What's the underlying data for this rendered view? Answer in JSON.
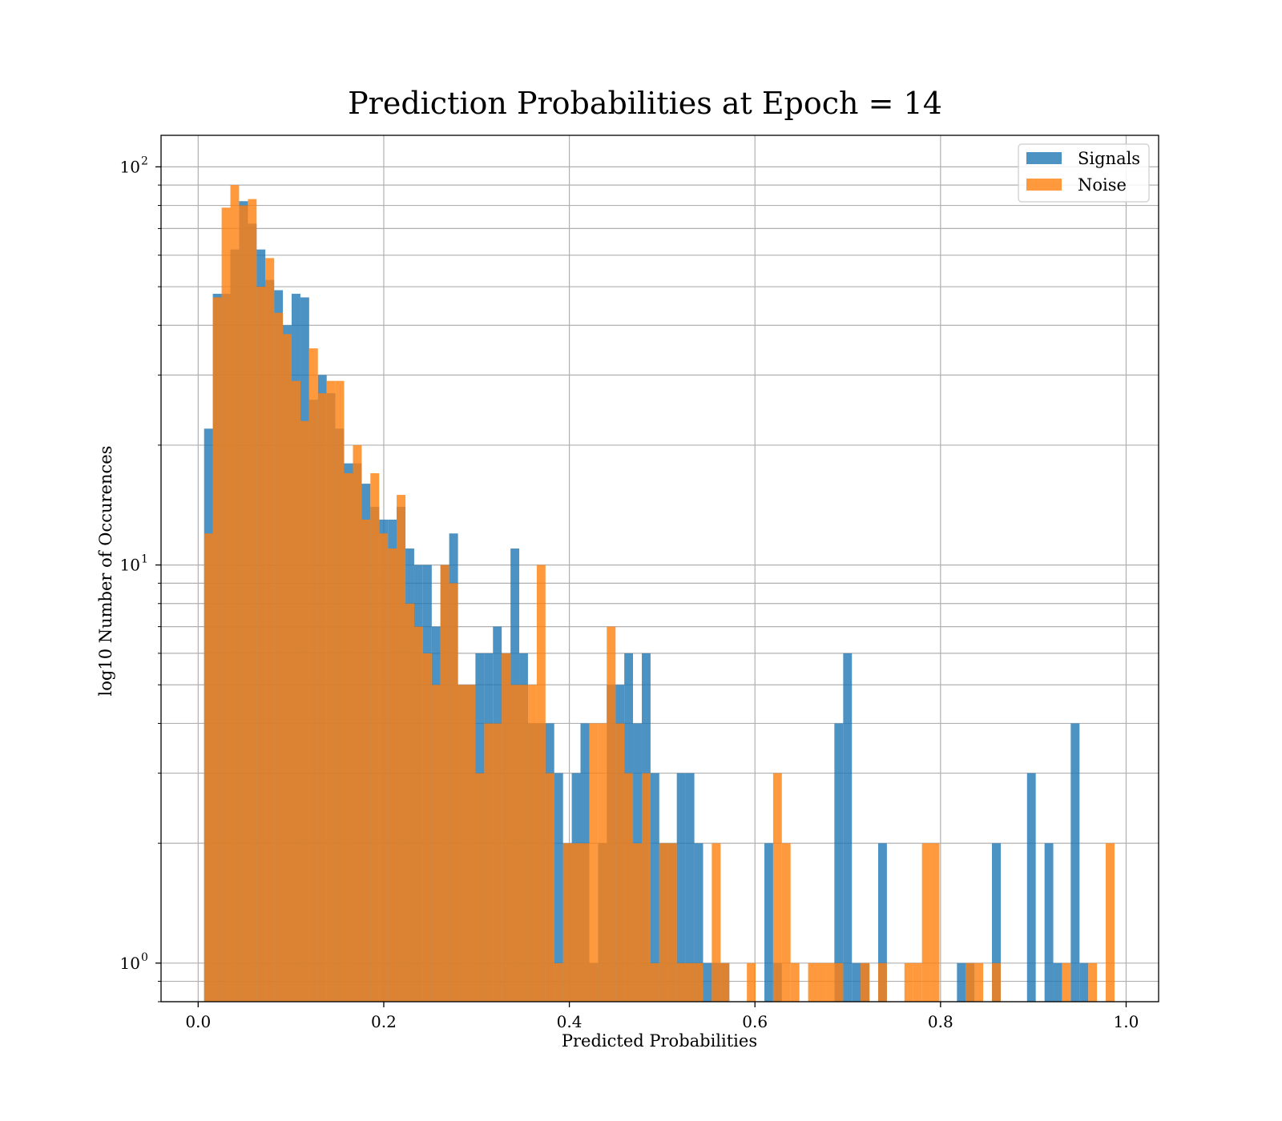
{
  "chart_data": {
    "type": "histogram",
    "title": "Prediction Probabilities at Epoch = 14",
    "xlabel": "Predicted Probabilities",
    "ylabel": "log10 Number of Occurences",
    "y_scale": "log",
    "xlim": [
      -0.04,
      1.035
    ],
    "ylim": [
      0.8,
      120
    ],
    "x_ticks": [
      "0.0",
      "0.2",
      "0.4",
      "0.6",
      "0.8",
      "1.0"
    ],
    "y_ticks": [
      {
        "base": "10",
        "exp": "0",
        "value": 1
      },
      {
        "base": "10",
        "exp": "1",
        "value": 10
      },
      {
        "base": "10",
        "exp": "2",
        "value": 100
      }
    ],
    "grid": true,
    "legend_position": "upper right",
    "series": [
      {
        "name": "Signals",
        "color": "#1f77b4",
        "bins": [
          [
            0.0064,
            0.0158,
            22
          ],
          [
            0.0158,
            0.0253,
            48
          ],
          [
            0.0253,
            0.0347,
            48
          ],
          [
            0.0347,
            0.0441,
            62
          ],
          [
            0.0441,
            0.0536,
            82
          ],
          [
            0.0536,
            0.063,
            72
          ],
          [
            0.063,
            0.0724,
            62
          ],
          [
            0.0724,
            0.0819,
            52
          ],
          [
            0.0819,
            0.0913,
            49
          ],
          [
            0.0913,
            0.1007,
            40
          ],
          [
            0.1007,
            0.1102,
            48
          ],
          [
            0.1102,
            0.1196,
            47
          ],
          [
            0.1196,
            0.129,
            26
          ],
          [
            0.129,
            0.1385,
            30
          ],
          [
            0.1385,
            0.1479,
            27
          ],
          [
            0.1479,
            0.1573,
            22
          ],
          [
            0.1573,
            0.1668,
            18
          ],
          [
            0.1668,
            0.1762,
            18
          ],
          [
            0.1762,
            0.1856,
            16
          ],
          [
            0.1856,
            0.1951,
            14
          ],
          [
            0.1951,
            0.2045,
            13
          ],
          [
            0.2045,
            0.2139,
            13
          ],
          [
            0.2139,
            0.2234,
            14
          ],
          [
            0.2234,
            0.2328,
            11
          ],
          [
            0.2328,
            0.2422,
            10
          ],
          [
            0.2422,
            0.2517,
            10
          ],
          [
            0.2517,
            0.2611,
            7
          ],
          [
            0.2611,
            0.2705,
            10
          ],
          [
            0.2705,
            0.28,
            12
          ],
          [
            0.28,
            0.2894,
            5
          ],
          [
            0.2894,
            0.2988,
            5
          ],
          [
            0.2988,
            0.3083,
            6
          ],
          [
            0.3083,
            0.3177,
            6
          ],
          [
            0.3177,
            0.3271,
            7
          ],
          [
            0.3271,
            0.3366,
            6
          ],
          [
            0.3366,
            0.346,
            11
          ],
          [
            0.346,
            0.3554,
            6
          ],
          [
            0.3554,
            0.3649,
            4
          ],
          [
            0.3649,
            0.3743,
            4
          ],
          [
            0.3743,
            0.3837,
            4
          ],
          [
            0.3837,
            0.3932,
            3
          ],
          [
            0.3932,
            0.4026,
            2
          ],
          [
            0.4026,
            0.412,
            3
          ],
          [
            0.412,
            0.4215,
            4
          ],
          [
            0.4215,
            0.4309,
            1
          ],
          [
            0.4309,
            0.4403,
            2
          ],
          [
            0.4403,
            0.4498,
            5
          ],
          [
            0.4498,
            0.4592,
            5
          ],
          [
            0.4592,
            0.4686,
            6
          ],
          [
            0.4686,
            0.4781,
            4
          ],
          [
            0.4781,
            0.4875,
            6
          ],
          [
            0.4875,
            0.4969,
            3
          ],
          [
            0.4969,
            0.5064,
            2
          ],
          [
            0.5064,
            0.5158,
            2
          ],
          [
            0.5158,
            0.5252,
            3
          ],
          [
            0.5252,
            0.5347,
            3
          ],
          [
            0.5347,
            0.5441,
            2
          ],
          [
            0.5441,
            0.5535,
            1
          ],
          [
            0.5535,
            0.563,
            1
          ],
          [
            0.563,
            0.5724,
            1
          ],
          [
            0.6102,
            0.6196,
            2
          ],
          [
            0.6196,
            0.629,
            1
          ],
          [
            0.6856,
            0.6951,
            4
          ],
          [
            0.6951,
            0.7045,
            6
          ],
          [
            0.7045,
            0.7139,
            1
          ],
          [
            0.7139,
            0.7234,
            1
          ],
          [
            0.7328,
            0.7422,
            2
          ],
          [
            0.8177,
            0.8271,
            1
          ],
          [
            0.8271,
            0.8366,
            1
          ],
          [
            0.8554,
            0.8649,
            2
          ],
          [
            0.8932,
            0.9026,
            3
          ],
          [
            0.9121,
            0.9215,
            2
          ],
          [
            0.9215,
            0.9309,
            1
          ],
          [
            0.9403,
            0.9498,
            4
          ],
          [
            0.9498,
            0.9592,
            1
          ]
        ]
      },
      {
        "name": "Noise",
        "color": "#ff7f0e",
        "bins": [
          [
            0.0064,
            0.0158,
            12
          ],
          [
            0.0158,
            0.0253,
            47
          ],
          [
            0.0253,
            0.0347,
            79
          ],
          [
            0.0347,
            0.0441,
            90
          ],
          [
            0.0441,
            0.0536,
            80
          ],
          [
            0.0536,
            0.063,
            83
          ],
          [
            0.063,
            0.0724,
            50
          ],
          [
            0.0724,
            0.0819,
            59
          ],
          [
            0.0819,
            0.0913,
            43
          ],
          [
            0.0913,
            0.1007,
            38
          ],
          [
            0.1007,
            0.1102,
            29
          ],
          [
            0.1102,
            0.1196,
            23
          ],
          [
            0.1196,
            0.129,
            35
          ],
          [
            0.129,
            0.1385,
            27
          ],
          [
            0.1385,
            0.1479,
            29
          ],
          [
            0.1479,
            0.1573,
            29
          ],
          [
            0.1573,
            0.1668,
            17
          ],
          [
            0.1668,
            0.1762,
            20
          ],
          [
            0.1762,
            0.1856,
            13
          ],
          [
            0.1856,
            0.1951,
            17
          ],
          [
            0.1951,
            0.2045,
            12
          ],
          [
            0.2045,
            0.2139,
            11
          ],
          [
            0.2139,
            0.2234,
            15
          ],
          [
            0.2234,
            0.2328,
            8
          ],
          [
            0.2328,
            0.2422,
            7
          ],
          [
            0.2422,
            0.2517,
            6
          ],
          [
            0.2517,
            0.2611,
            5
          ],
          [
            0.2611,
            0.2705,
            10
          ],
          [
            0.2705,
            0.28,
            9
          ],
          [
            0.28,
            0.2894,
            5
          ],
          [
            0.2894,
            0.2988,
            5
          ],
          [
            0.2988,
            0.3083,
            3
          ],
          [
            0.3083,
            0.3177,
            4
          ],
          [
            0.3177,
            0.3271,
            4
          ],
          [
            0.3271,
            0.3366,
            6
          ],
          [
            0.3366,
            0.346,
            5
          ],
          [
            0.346,
            0.3554,
            5
          ],
          [
            0.3554,
            0.3649,
            5
          ],
          [
            0.3649,
            0.3743,
            10
          ],
          [
            0.3743,
            0.3837,
            3
          ],
          [
            0.3837,
            0.3932,
            1
          ],
          [
            0.3932,
            0.4026,
            2
          ],
          [
            0.4026,
            0.412,
            2
          ],
          [
            0.412,
            0.4215,
            2
          ],
          [
            0.4215,
            0.4309,
            4
          ],
          [
            0.4309,
            0.4403,
            4
          ],
          [
            0.4403,
            0.4498,
            7
          ],
          [
            0.4498,
            0.4592,
            4
          ],
          [
            0.4592,
            0.4686,
            3
          ],
          [
            0.4686,
            0.4781,
            2
          ],
          [
            0.4781,
            0.4875,
            3
          ],
          [
            0.4875,
            0.4969,
            1
          ],
          [
            0.4969,
            0.5064,
            2
          ],
          [
            0.5064,
            0.5158,
            2
          ],
          [
            0.5158,
            0.5252,
            1
          ],
          [
            0.5252,
            0.5347,
            1
          ],
          [
            0.5347,
            0.5441,
            1
          ],
          [
            0.5535,
            0.563,
            2
          ],
          [
            0.563,
            0.5724,
            1
          ],
          [
            0.5913,
            0.6007,
            1
          ],
          [
            0.6196,
            0.629,
            3
          ],
          [
            0.629,
            0.6384,
            2
          ],
          [
            0.6384,
            0.6479,
            1
          ],
          [
            0.6573,
            0.6667,
            1
          ],
          [
            0.6667,
            0.6762,
            1
          ],
          [
            0.6762,
            0.6856,
            1
          ],
          [
            0.6856,
            0.6951,
            1
          ],
          [
            0.7139,
            0.7234,
            1
          ],
          [
            0.7328,
            0.7422,
            1
          ],
          [
            0.7611,
            0.7705,
            1
          ],
          [
            0.7705,
            0.78,
            1
          ],
          [
            0.78,
            0.7894,
            2
          ],
          [
            0.7894,
            0.7988,
            2
          ],
          [
            0.8271,
            0.8366,
            1
          ],
          [
            0.8366,
            0.846,
            1
          ],
          [
            0.8554,
            0.8649,
            1
          ],
          [
            0.9309,
            0.9403,
            1
          ],
          [
            0.9592,
            0.9686,
            1
          ],
          [
            0.978,
            0.9875,
            2
          ]
        ]
      }
    ]
  }
}
